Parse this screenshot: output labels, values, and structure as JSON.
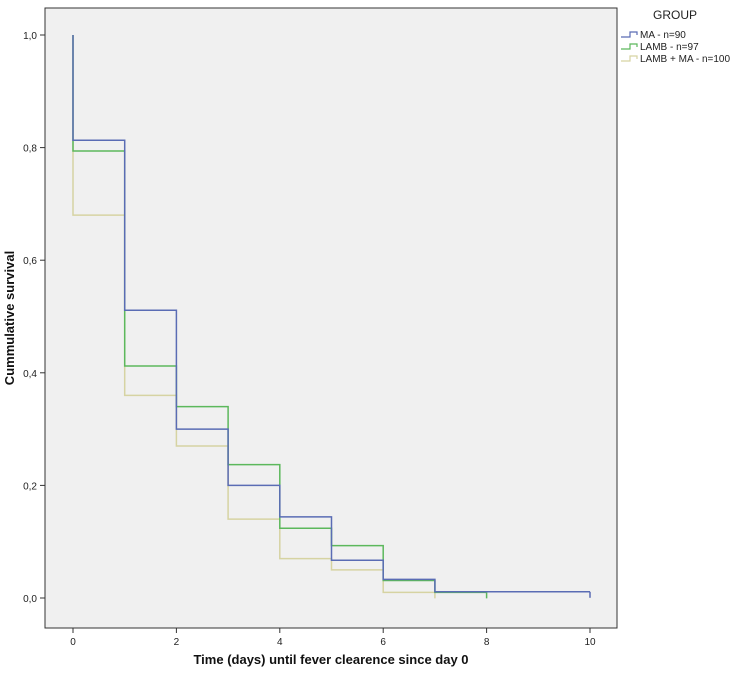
{
  "chart_data": {
    "type": "line",
    "subtype": "step (Kaplan-Meier)",
    "title": "",
    "xlabel": "Time (days)  until fever clearence since day 0",
    "ylabel": "Cummulative survival",
    "xlim": [
      0,
      10
    ],
    "ylim": [
      0,
      1
    ],
    "xticks": [
      0,
      2,
      4,
      6,
      8,
      10
    ],
    "yticks": [
      0.0,
      0.2,
      0.4,
      0.6,
      0.8,
      1.0
    ],
    "ytick_labels": [
      "0,0",
      "0,2",
      "0,4",
      "0,6",
      "0,8",
      "1,0"
    ],
    "grid": false,
    "background": "#f0f0f0",
    "legend": {
      "title": "GROUP",
      "placement": "outside top-right"
    },
    "series": [
      {
        "name": "MA - n=90",
        "color": "#5a6cb4",
        "x": [
          0,
          1,
          2,
          3,
          4,
          5,
          6,
          7,
          10
        ],
        "y": [
          0.813,
          0.511,
          0.3,
          0.2,
          0.144,
          0.067,
          0.033,
          0.011,
          0.011
        ]
      },
      {
        "name": "LAMB - n=97",
        "color": "#5cb85c",
        "x": [
          0,
          1,
          2,
          3,
          4,
          5,
          6,
          7,
          8
        ],
        "y": [
          0.794,
          0.412,
          0.34,
          0.237,
          0.124,
          0.093,
          0.031,
          0.01,
          0.01
        ]
      },
      {
        "name": "LAMB + MA - n=100",
        "color": "#d6d3a2",
        "x": [
          0,
          1,
          2,
          3,
          4,
          5,
          6,
          7
        ],
        "y": [
          0.68,
          0.36,
          0.27,
          0.14,
          0.07,
          0.05,
          0.01,
          0.01
        ]
      }
    ]
  }
}
